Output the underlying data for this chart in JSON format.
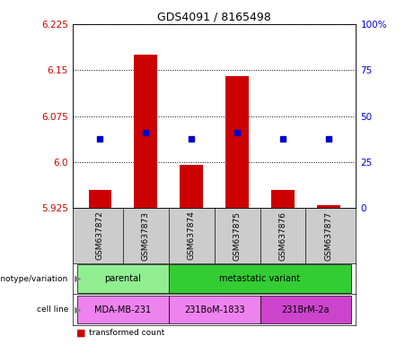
{
  "title": "GDS4091 / 8165498",
  "samples": [
    "GSM637872",
    "GSM637873",
    "GSM637874",
    "GSM637875",
    "GSM637876",
    "GSM637877"
  ],
  "bar_values": [
    5.955,
    6.175,
    5.995,
    6.14,
    5.955,
    5.93
  ],
  "bar_bottom": 5.925,
  "blue_values": [
    6.038,
    6.048,
    6.038,
    6.048,
    6.038,
    6.038
  ],
  "ylim": [
    5.925,
    6.225
  ],
  "yticks_left": [
    5.925,
    6.0,
    6.075,
    6.15,
    6.225
  ],
  "yticks_right_labels": [
    "0",
    "25",
    "50",
    "75",
    "100%"
  ],
  "yticks_right_vals": [
    5.925,
    6.0,
    6.075,
    6.15,
    6.225
  ],
  "bar_color": "#cc0000",
  "blue_color": "#0000cc",
  "bar_width": 0.5,
  "left_axis_color": "#cc0000",
  "right_axis_color": "#0000cc",
  "parental_color": "#90ee90",
  "metastatic_color": "#33cc33",
  "cell_mda_color": "#ee82ee",
  "cell_231bom_color": "#ee82ee",
  "cell_231brm_color": "#cc44cc",
  "background_sample": "#cccccc"
}
